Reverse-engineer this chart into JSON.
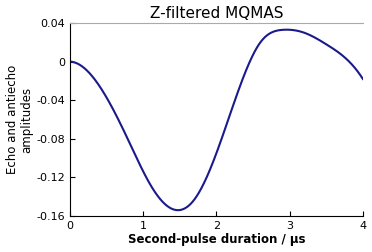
{
  "title": "Z-filtered MQMAS",
  "xlabel": "Second-pulse duration / μs",
  "ylabel": "Echo and antiecho\namplitudes",
  "xlim": [
    0,
    4
  ],
  "ylim": [
    -0.16,
    0.04
  ],
  "yticks": [
    -0.16,
    -0.12,
    -0.08,
    -0.04,
    0,
    0.04
  ],
  "xticks": [
    0,
    1,
    2,
    3,
    4
  ],
  "line_color": "#1a1a8c",
  "line_width": 1.5,
  "background_color": "#ffffff",
  "title_fontsize": 11,
  "label_fontsize": 8.5,
  "tick_fontsize": 8,
  "curve_amplitude": -0.21,
  "curve_omega": 1.963,
  "curve_decay": 0.28
}
